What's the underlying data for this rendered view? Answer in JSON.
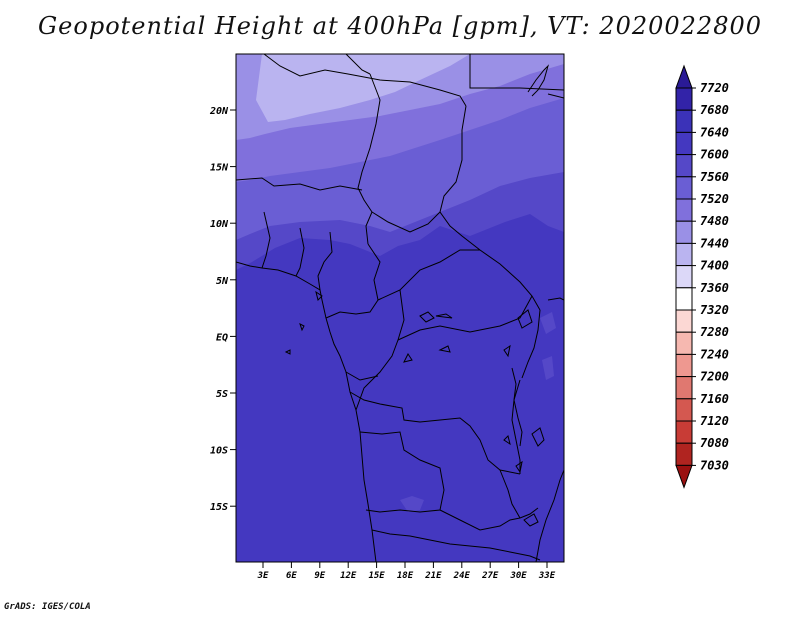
{
  "title": "Geopotential Height at 400hPa [gpm], VT: 2020022800",
  "credit": "GrADS: IGES/COLA",
  "map": {
    "lat_labels": [
      "20N",
      "15N",
      "10N",
      "5N",
      "EQ",
      "5S",
      "10S",
      "15S"
    ],
    "lon_labels": [
      "3E",
      "6E",
      "9E",
      "12E",
      "15E",
      "18E",
      "21E",
      "24E",
      "27E",
      "30E",
      "33E"
    ]
  },
  "colorbar": {
    "levels": [
      "7720",
      "7680",
      "7640",
      "7600",
      "7560",
      "7520",
      "7480",
      "7440",
      "7400",
      "7360",
      "7320",
      "7280",
      "7240",
      "7200",
      "7160",
      "7120",
      "7080",
      "7030"
    ],
    "colors": [
      "#2a1a96",
      "#3223a8",
      "#3b32b8",
      "#4438c0",
      "#5548c8",
      "#6a5ed4",
      "#8070dc",
      "#9a90e6",
      "#bab4f0",
      "#dcd8f8",
      "#ffffff",
      "#fcd8d4",
      "#f6b8b0",
      "#ee9890",
      "#e07870",
      "#d45850",
      "#c83c36",
      "#b02420",
      "#9a1010"
    ]
  },
  "field_colors": {
    "band_7440": "#bab4f0",
    "band_7480": "#9a90e6",
    "band_7520": "#8070dc",
    "band_7560": "#6a5ed4",
    "band_7600": "#5548c8",
    "band_7640": "#4438c0"
  }
}
